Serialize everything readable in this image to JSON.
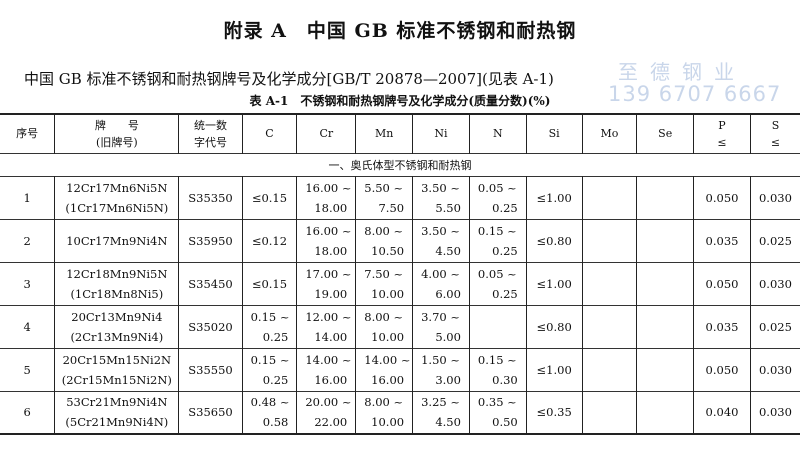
{
  "title": "附录 A　中国 GB 标准不锈钢和耐热钢",
  "subtitle": "中国 GB 标准不锈钢和耐热钢牌号及化学成分[GB/T 20878—2007](见表 A-1)",
  "caption": "表 A-1　不锈钢和耐热钢牌号及化学成分(质量分数)(%)",
  "watermark": {
    "name": "至德钢业",
    "phone": "139 6707 6667",
    "color": "#c9d6ea"
  },
  "headers": [
    [
      "序号"
    ],
    [
      "牌　　号",
      "(旧牌号)"
    ],
    [
      "统一数",
      "字代号"
    ],
    [
      "C"
    ],
    [
      "Cr"
    ],
    [
      "Mn"
    ],
    [
      "Ni"
    ],
    [
      "N"
    ],
    [
      "Si"
    ],
    [
      "Mo"
    ],
    [
      "Se"
    ],
    [
      "P",
      "≤"
    ],
    [
      "S",
      "≤"
    ]
  ],
  "section": "一、奥氏体型不锈钢和耐热钢",
  "rows": [
    {
      "no": "1",
      "grade": "12Cr17Mn6Ni5N",
      "old": "(1Cr17Mn6Ni5N)",
      "code": "S35350",
      "C": [
        "≤0.15"
      ],
      "Cr": [
        "16.00 ~",
        "18.00"
      ],
      "Mn": [
        "5.50 ~",
        "7.50"
      ],
      "Ni": [
        "3.50 ~",
        "5.50"
      ],
      "N": [
        "0.05 ~",
        "0.25"
      ],
      "Si": "≤1.00",
      "Mo": "",
      "Se": "",
      "P": "0.050",
      "S": "0.030"
    },
    {
      "no": "2",
      "grade": "10Cr17Mn9Ni4N",
      "old": "",
      "code": "S35950",
      "C": [
        "≤0.12"
      ],
      "Cr": [
        "16.00 ~",
        "18.00"
      ],
      "Mn": [
        "8.00 ~",
        "10.50"
      ],
      "Ni": [
        "3.50 ~",
        "4.50"
      ],
      "N": [
        "0.15 ~",
        "0.25"
      ],
      "Si": "≤0.80",
      "Mo": "",
      "Se": "",
      "P": "0.035",
      "S": "0.025"
    },
    {
      "no": "3",
      "grade": "12Cr18Mn9Ni5N",
      "old": "(1Cr18Mn8Ni5)",
      "code": "S35450",
      "C": [
        "≤0.15"
      ],
      "Cr": [
        "17.00 ~",
        "19.00"
      ],
      "Mn": [
        "7.50 ~",
        "10.00"
      ],
      "Ni": [
        "4.00 ~",
        "6.00"
      ],
      "N": [
        "0.05 ~",
        "0.25"
      ],
      "Si": "≤1.00",
      "Mo": "",
      "Se": "",
      "P": "0.050",
      "S": "0.030"
    },
    {
      "no": "4",
      "grade": "20Cr13Mn9Ni4",
      "old": "(2Cr13Mn9Ni4)",
      "code": "S35020",
      "C": [
        "0.15 ~",
        "0.25"
      ],
      "Cr": [
        "12.00 ~",
        "14.00"
      ],
      "Mn": [
        "8.00 ~",
        "10.00"
      ],
      "Ni": [
        "3.70 ~",
        "5.00"
      ],
      "N": [],
      "Si": "≤0.80",
      "Mo": "",
      "Se": "",
      "P": "0.035",
      "S": "0.025"
    },
    {
      "no": "5",
      "grade": "20Cr15Mn15Ni2N",
      "old": "(2Cr15Mn15Ni2N)",
      "code": "S35550",
      "C": [
        "0.15 ~",
        "0.25"
      ],
      "Cr": [
        "14.00 ~",
        "16.00"
      ],
      "Mn": [
        "14.00 ~",
        "16.00"
      ],
      "Ni": [
        "1.50 ~",
        "3.00"
      ],
      "N": [
        "0.15 ~",
        "0.30"
      ],
      "Si": "≤1.00",
      "Mo": "",
      "Se": "",
      "P": "0.050",
      "S": "0.030"
    },
    {
      "no": "6",
      "grade": "53Cr21Mn9Ni4N",
      "old": "(5Cr21Mn9Ni4N)",
      "code": "S35650",
      "C": [
        "0.48 ~",
        "0.58"
      ],
      "Cr": [
        "20.00 ~",
        "22.00"
      ],
      "Mn": [
        "8.00 ~",
        "10.00"
      ],
      "Ni": [
        "3.25 ~",
        "4.50"
      ],
      "N": [
        "0.35 ~",
        "0.50"
      ],
      "Si": "≤0.35",
      "Mo": "",
      "Se": "",
      "P": "0.040",
      "S": "0.030"
    }
  ]
}
